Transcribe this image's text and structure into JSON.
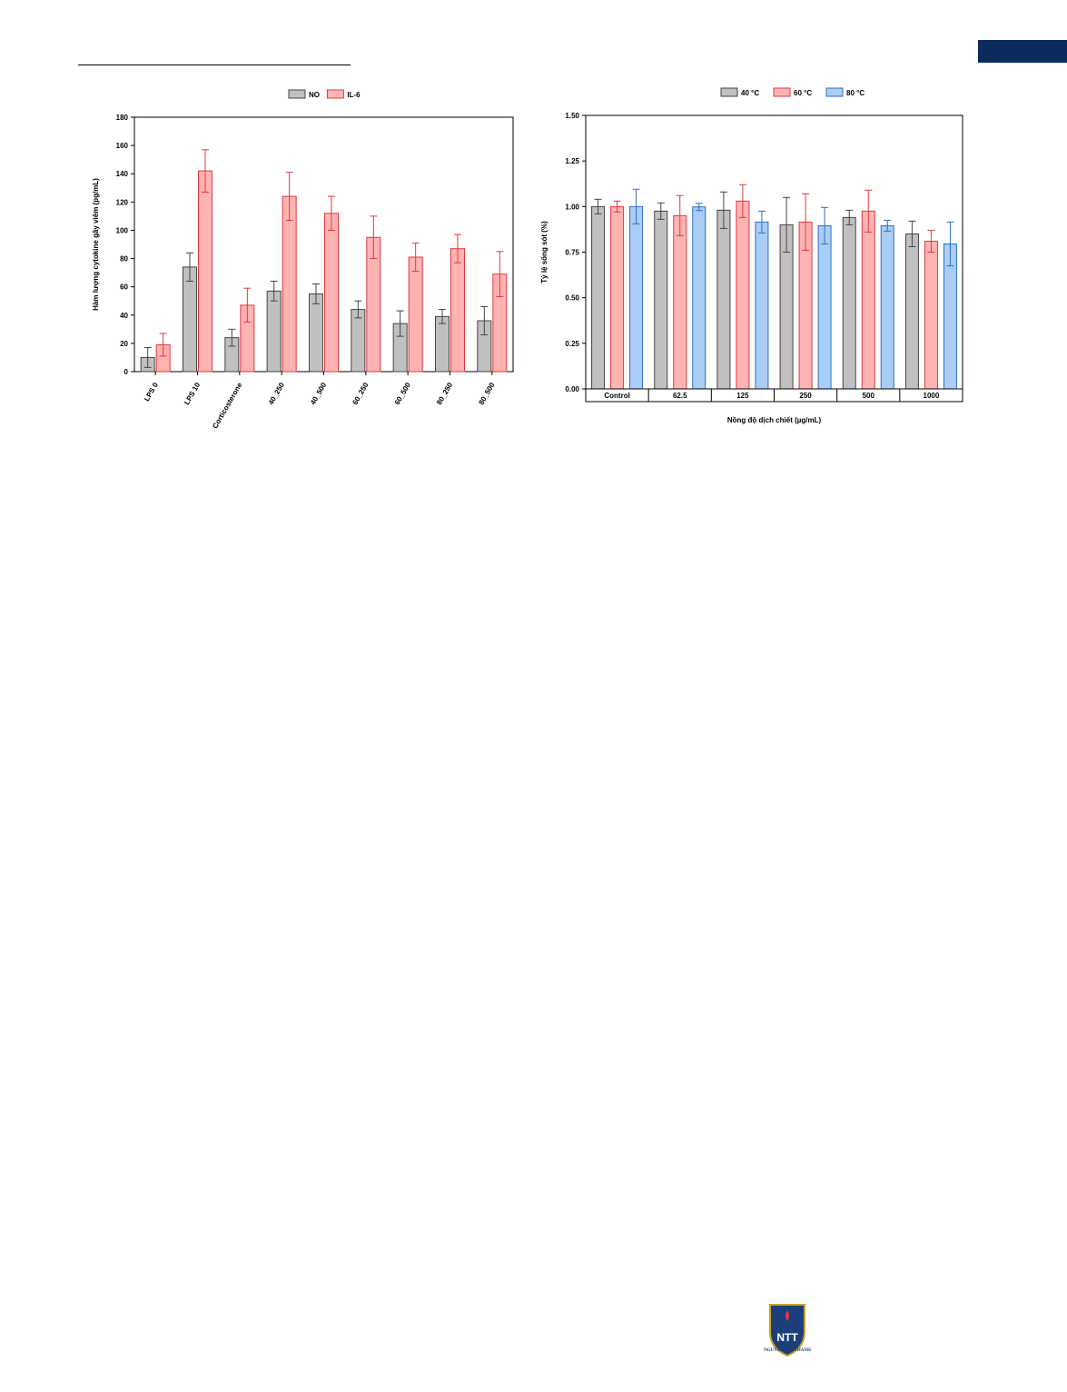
{
  "colors": {
    "gray": "#c0c0c0",
    "red": "#ffb3b3",
    "blue": "#a9cdf5",
    "gray_stroke": "#444444",
    "red_stroke": "#e0393e",
    "blue_stroke": "#2f6fbf",
    "brand": "#0d2a5c"
  },
  "logo": {
    "icon": "university-shield-icon",
    "caption": "NGUYEN TAT THANH"
  },
  "chart_data": [
    {
      "type": "bar",
      "xlabel": "",
      "ylabel": "Hàm lượng cytokine gây viêm (pg/mL)",
      "ylim": [
        0,
        180
      ],
      "yticks": [
        "0",
        "20",
        "40",
        "60",
        "80",
        "100",
        "120",
        "140",
        "160",
        "180"
      ],
      "legend_position": "top",
      "categories": [
        "LPS 0",
        "LPS 10",
        "Corticosterone",
        "40_250",
        "40_500",
        "60_250",
        "60_500",
        "80_250",
        "80_500"
      ],
      "series": [
        {
          "name": "NO",
          "color": "gray",
          "values": [
            10,
            74,
            24,
            57,
            55,
            44,
            34,
            39,
            36
          ],
          "errors": [
            7,
            10,
            6,
            7,
            7,
            6,
            9,
            5,
            10
          ]
        },
        {
          "name": "IL-6",
          "color": "red",
          "values": [
            19,
            142,
            47,
            124,
            112,
            95,
            81,
            87,
            69
          ],
          "errors": [
            8,
            15,
            12,
            17,
            12,
            15,
            10,
            10,
            16
          ]
        }
      ]
    },
    {
      "type": "bar",
      "xlabel": "Nồng độ dịch chiết (µg/mL)",
      "ylabel": "Tỷ lệ sống sót (%)",
      "ylim": [
        0,
        1.5
      ],
      "yticks": [
        "0.00",
        "0.25",
        "0.50",
        "0.75",
        "1.00",
        "1.25",
        "1.50"
      ],
      "legend_position": "top",
      "categories": [
        "Control",
        "62.5",
        "125",
        "250",
        "500",
        "1000"
      ],
      "series": [
        {
          "name": "40 °C",
          "color": "gray",
          "values": [
            1.0,
            0.975,
            0.98,
            0.9,
            0.94,
            0.85
          ],
          "errors": [
            0.04,
            0.045,
            0.1,
            0.15,
            0.04,
            0.07
          ]
        },
        {
          "name": "60 °C",
          "color": "red",
          "values": [
            1.0,
            0.95,
            1.03,
            0.915,
            0.975,
            0.81
          ],
          "errors": [
            0.03,
            0.11,
            0.09,
            0.155,
            0.115,
            0.06
          ]
        },
        {
          "name": "80 °C",
          "color": "blue",
          "values": [
            1.0,
            0.998,
            0.915,
            0.895,
            0.895,
            0.795
          ],
          "errors": [
            0.095,
            0.02,
            0.06,
            0.1,
            0.03,
            0.12
          ]
        }
      ]
    }
  ]
}
